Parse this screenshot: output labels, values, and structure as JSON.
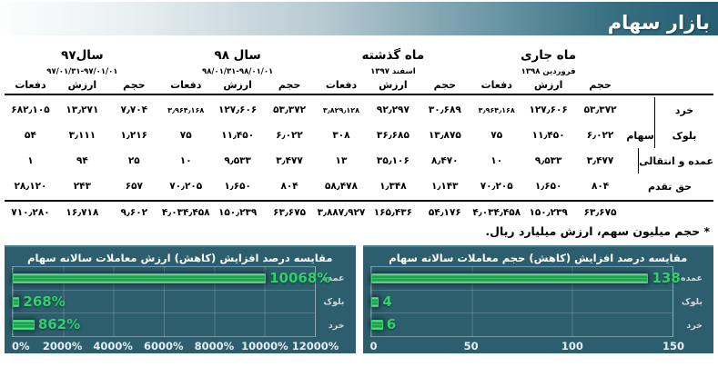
{
  "header": {
    "title": "بازار سهام"
  },
  "table": {
    "groups": [
      {
        "title": "ماه جاری",
        "subtitle": "فروردین ۱۳۹۸"
      },
      {
        "title": "ماه گذشته",
        "subtitle": "اسفند ۱۳۹۷"
      },
      {
        "title": "سال ۹۸",
        "subtitle": "۹۸/۰۱/۳۱-۹۸/۰۱/۰۱"
      },
      {
        "title": "سال۹۷",
        "subtitle": "۹۷/۰۱/۳۱-۹۷/۰۱/۰۱"
      }
    ],
    "col_headers": [
      "حجم",
      "ارزش",
      "دفعات"
    ],
    "group_label": "سهام",
    "rows": [
      {
        "label": "خرد",
        "cells": [
          "۵۳٫۳۷۲",
          "۱۲۷٫۶۰۶",
          "۳٫۹۶۴٫۱۶۸",
          "۳۰٫۶۸۹",
          "۹۲٫۲۹۷",
          "۳٫۸۲۹٫۱۲۸",
          "۵۳٫۳۷۲",
          "۱۲۷٫۶۰۶",
          "۳٫۹۶۴٫۱۶۸",
          "۷٫۷۰۴",
          "۱۳٫۲۷۱",
          "۶۸۲٫۱۰۵"
        ]
      },
      {
        "label": "بلوک",
        "cells": [
          "۶٫۰۲۲",
          "۱۱٫۴۵۰",
          "۷۵",
          "۱۳٫۸۷۵",
          "۳۶٫۶۸۵",
          "۳۰۸",
          "۶٫۰۲۲",
          "۱۱٫۴۵۰",
          "۷۵",
          "۱٫۲۱۶",
          "۳٫۱۱۱",
          "۵۴"
        ]
      },
      {
        "label": "عمده و انتقالی",
        "cells": [
          "۳٫۴۷۷",
          "۹٫۵۳۳",
          "۱۰",
          "۸٫۴۷۰",
          "۳۵٫۱۰۶",
          "۱۳",
          "۳٫۴۷۷",
          "۹٫۵۳۳",
          "۱۰",
          "۲۵",
          "۹۴",
          "۱"
        ]
      },
      {
        "label": "حق تقدم",
        "cells": [
          "۸۰۴",
          "۱٫۶۵۰",
          "۷۰٫۲۰۵",
          "۱٫۱۴۳",
          "۱٫۳۴۸",
          "۵۸٫۴۷۸",
          "۸۰۴",
          "۱٫۶۵۰",
          "۷۰٫۲۰۵",
          "۶۵۷",
          "۲۴۳",
          "۲۸٫۱۲۰"
        ]
      }
    ],
    "totals": [
      "۶۳٫۶۷۵",
      "۱۵۰٫۲۳۹",
      "۴٫۰۳۴٫۴۵۸",
      "۵۴٫۱۷۶",
      "۱۶۵٫۴۳۶",
      "۳٫۸۸۷٫۹۲۷",
      "۶۳٫۶۷۵",
      "۱۵۰٫۲۳۹",
      "۴٫۰۳۴٫۴۵۸",
      "۹٫۶۰۲",
      "۱۶٫۷۱۸",
      "۷۱۰٫۲۸۰"
    ],
    "note": "* حجم میلیون سهم، ارزش میلیارد ریال."
  },
  "chart_data": [
    {
      "type": "bar",
      "orientation": "horizontal",
      "title": "مقایسه درصد افزایش (کاهش) ارزش معاملات سالانه سهام",
      "categories": [
        "عمده",
        "بلوک",
        "خرد"
      ],
      "values": [
        10068,
        268,
        862
      ],
      "value_labels": [
        "10068%",
        "268%",
        "862%"
      ],
      "xticks": [
        "0%",
        "2000%",
        "4000%",
        "6000%",
        "8000%",
        "10000%",
        "12000%"
      ],
      "xlim": [
        0,
        12000
      ],
      "grid": true,
      "legend": false,
      "bg_color": "#2d5e6d",
      "bar_color": "#1db355",
      "label_color": "#2ed36c"
    },
    {
      "type": "bar",
      "orientation": "horizontal",
      "title": "مقایسه درصد افزایش (کاهش) حجم معاملات سالانه سهام",
      "categories": [
        "عمده",
        "بلوک",
        "خرد"
      ],
      "values": [
        138,
        4,
        6
      ],
      "value_labels": [
        "138",
        "4",
        "6"
      ],
      "xticks": [
        "0",
        "50",
        "100",
        "150"
      ],
      "xlim": [
        0,
        150
      ],
      "grid": true,
      "legend": false,
      "bg_color": "#2d5e6d",
      "bar_color": "#1db355",
      "label_color": "#2ed36c"
    }
  ],
  "colors": {
    "banner_teal": "#255e71",
    "panel_teal": "#2d5e6d",
    "bar_green": "#1db355",
    "value_label_green": "#2ed36c"
  }
}
